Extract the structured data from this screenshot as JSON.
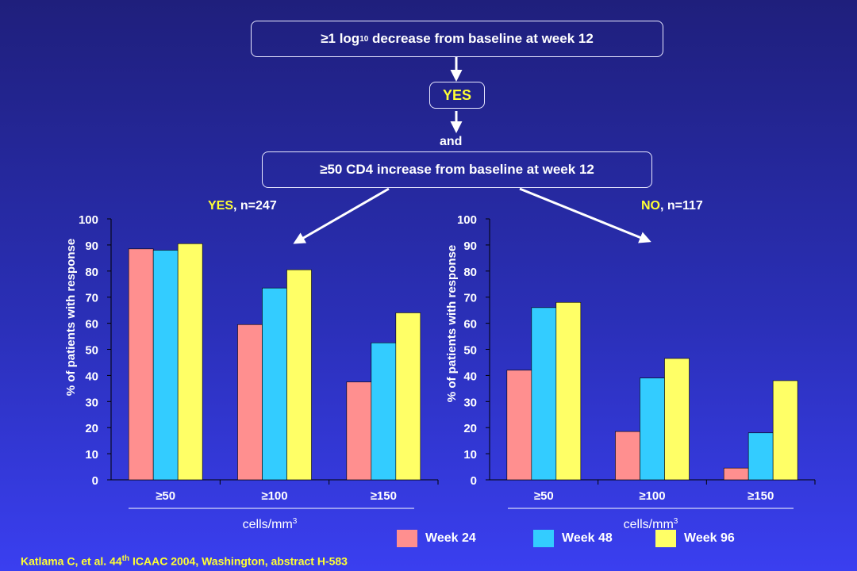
{
  "flow": {
    "box1_prefix": "≥1 log",
    "box1_sub": "10",
    "box1_suffix": " decrease from baseline at week 12",
    "yes": "YES",
    "and": "and",
    "box2": "≥50 CD4 increase from baseline at week 12"
  },
  "panels": {
    "left": {
      "label": "YES",
      "rest": ", n=247"
    },
    "right": {
      "label": "NO",
      "rest": ", n=117"
    }
  },
  "citation": {
    "pre": "Katlama C, et al. 44",
    "sup": "th",
    "post": " ICAAC 2004, Washington, abstract H-583"
  },
  "colors": {
    "week24": "#ff8f8f",
    "week48": "#33ccff",
    "week96": "#ffff66",
    "highlight": "#ffff33"
  },
  "chart_data": [
    {
      "type": "bar",
      "panel": "YES, n=247",
      "categories": [
        "≥50",
        "≥100",
        "≥150"
      ],
      "series": [
        {
          "name": "Week 24",
          "values": [
            88.5,
            59.5,
            37.5
          ]
        },
        {
          "name": "Week 48",
          "values": [
            88,
            73.5,
            52.5
          ]
        },
        {
          "name": "Week 96",
          "values": [
            90.5,
            80.5,
            64
          ]
        }
      ],
      "ylabel": "% of patients with response",
      "xlabel": "cells/mm",
      "xlabel_sup": "3",
      "ylim": [
        0,
        100
      ],
      "yticks": [
        0,
        10,
        20,
        30,
        40,
        50,
        60,
        70,
        80,
        90,
        100
      ],
      "grid": false
    },
    {
      "type": "bar",
      "panel": "NO, n=117",
      "categories": [
        "≥50",
        "≥100",
        "≥150"
      ],
      "series": [
        {
          "name": "Week 24",
          "values": [
            42,
            18.5,
            4.5
          ]
        },
        {
          "name": "Week 48",
          "values": [
            66,
            39,
            18
          ]
        },
        {
          "name": "Week 96",
          "values": [
            68,
            46.5,
            38
          ]
        }
      ],
      "ylabel": "% of patients with response",
      "xlabel": "cells/mm",
      "xlabel_sup": "3",
      "ylim": [
        0,
        100
      ],
      "yticks": [
        0,
        10,
        20,
        30,
        40,
        50,
        60,
        70,
        80,
        90,
        100
      ],
      "grid": false
    }
  ]
}
